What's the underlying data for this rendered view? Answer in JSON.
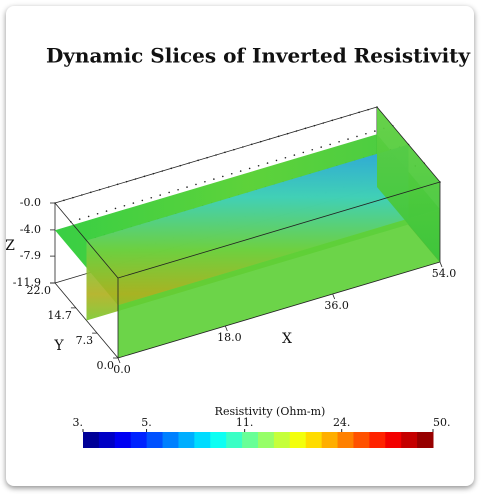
{
  "chart_data": {
    "type": "slices3d",
    "title": "Dynamic Slices of Inverted Resistivity",
    "xlabel": "X",
    "ylabel": "Y",
    "zlabel": "Z",
    "xlim": [
      0,
      54
    ],
    "ylim": [
      0,
      22
    ],
    "zlim": [
      -11.9,
      0
    ],
    "xticks": [
      {
        "value": 0,
        "label": "0.0"
      },
      {
        "value": 18,
        "label": "18.0"
      },
      {
        "value": 36,
        "label": "36.0"
      },
      {
        "value": 54,
        "label": "54.0"
      }
    ],
    "yticks": [
      {
        "value": 0,
        "label": "0.0"
      },
      {
        "value": 7.3,
        "label": "7.3"
      },
      {
        "value": 14.7,
        "label": "14.7"
      },
      {
        "value": 22,
        "label": "22.0"
      }
    ],
    "zticks": [
      {
        "value": 0,
        "label": "-0.0"
      },
      {
        "value": -4,
        "label": "-4.0"
      },
      {
        "value": -7.9,
        "label": "-7.9"
      },
      {
        "value": -11.9,
        "label": "-11.9"
      }
    ],
    "colorbar": {
      "label": "Resistivity (Ohm-m)",
      "lim": [
        3,
        50
      ],
      "log": true,
      "ticks": [
        {
          "value": 3,
          "label": "3."
        },
        {
          "value": 5,
          "label": "5."
        },
        {
          "value": 11,
          "label": "11."
        },
        {
          "value": 24,
          "label": "24."
        },
        {
          "value": 50,
          "label": "50."
        }
      ]
    }
  }
}
